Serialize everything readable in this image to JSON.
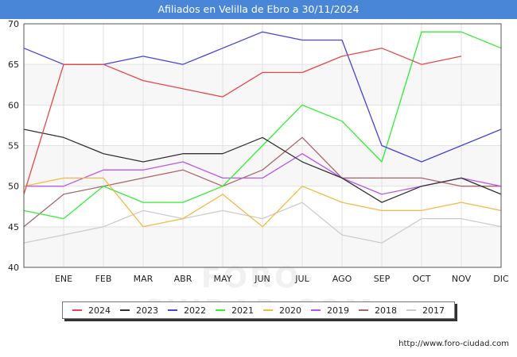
{
  "title": "Afiliados en Velilla de Ebro a 30/11/2024",
  "watermark": "FORO-CIUDAD.COM",
  "footer_url": "http://www.foro-ciudad.com",
  "chart_data": {
    "type": "line",
    "title": "Afiliados en Velilla de Ebro a 30/11/2024",
    "xlabel": "",
    "ylabel": "",
    "ylim": [
      40,
      70
    ],
    "yticks": [
      40,
      45,
      50,
      55,
      60,
      65,
      70
    ],
    "categories": [
      "",
      "ENE",
      "FEB",
      "MAR",
      "ABR",
      "MAY",
      "JUN",
      "JUL",
      "AGO",
      "SEP",
      "OCT",
      "NOV",
      "DIC"
    ],
    "grid": true,
    "legend_position": "bottom",
    "series": [
      {
        "name": "2024",
        "color": "#e8474a",
        "values": [
          49,
          65,
          65,
          63,
          62,
          61,
          64,
          64,
          66,
          67,
          65,
          66,
          null
        ]
      },
      {
        "name": "2023",
        "color": "#333333",
        "values": [
          57,
          56,
          54,
          53,
          54,
          54,
          56,
          53,
          51,
          48,
          50,
          51,
          49
        ]
      },
      {
        "name": "2022",
        "color": "#4444dd",
        "values": [
          67,
          65,
          65,
          66,
          65,
          67,
          69,
          68,
          68,
          55,
          53,
          55,
          57
        ]
      },
      {
        "name": "2021",
        "color": "#33ee33",
        "values": [
          47,
          46,
          50,
          48,
          48,
          50,
          55,
          60,
          58,
          53,
          69,
          69,
          67
        ]
      },
      {
        "name": "2020",
        "color": "#f5b942",
        "values": [
          50,
          51,
          51,
          45,
          46,
          49,
          45,
          50,
          48,
          47,
          47,
          48,
          47
        ]
      },
      {
        "name": "2019",
        "color": "#bb55ee",
        "values": [
          50,
          50,
          52,
          52,
          53,
          51,
          51,
          54,
          51,
          49,
          50,
          51,
          50
        ]
      },
      {
        "name": "2018",
        "color": "#aa6666",
        "values": [
          45,
          49,
          50,
          51,
          52,
          50,
          52,
          56,
          51,
          51,
          51,
          50,
          50
        ]
      },
      {
        "name": "2017",
        "color": "#cccccc",
        "values": [
          43,
          44,
          45,
          47,
          46,
          47,
          46,
          48,
          44,
          43,
          46,
          46,
          45
        ]
      }
    ]
  }
}
